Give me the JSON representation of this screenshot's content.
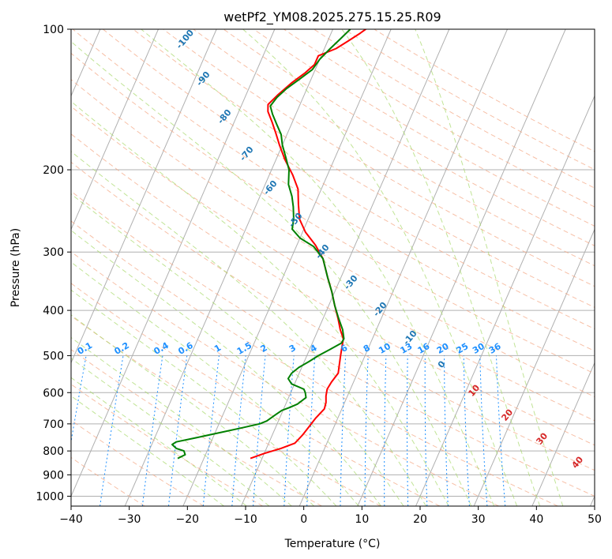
{
  "chart_data": {
    "type": "line",
    "title": "wetPf2_YM08.2025.275.15.25.R09",
    "xlabel": "Temperature (°C)",
    "ylabel": "Pressure (hPa)",
    "xlim": [
      -40,
      50
    ],
    "ylim": [
      1050,
      100
    ],
    "y_scale": "log",
    "grid": true,
    "x_ticks": [
      -40,
      -30,
      -20,
      -10,
      0,
      10,
      20,
      30,
      40,
      50
    ],
    "y_ticks": [
      100,
      200,
      300,
      400,
      500,
      600,
      700,
      800,
      900,
      1000
    ],
    "series": [
      {
        "color": "#ff0000",
        "points": [
          [
            -12,
            830
          ],
          [
            -10,
            810
          ],
          [
            -7.5,
            790
          ],
          [
            -5.5,
            770
          ],
          [
            -4.8,
            740
          ],
          [
            -4.3,
            710
          ],
          [
            -3.8,
            680
          ],
          [
            -3.0,
            650
          ],
          [
            -3.2,
            630
          ],
          [
            -3.7,
            610
          ],
          [
            -4.0,
            590
          ],
          [
            -3.8,
            570
          ],
          [
            -3.3,
            545
          ],
          [
            -3.8,
            520
          ],
          [
            -4.2,
            500
          ],
          [
            -4.6,
            480
          ],
          [
            -5.0,
            460
          ],
          [
            -6.2,
            440
          ],
          [
            -7.5,
            415
          ],
          [
            -9.0,
            390
          ],
          [
            -10.5,
            365
          ],
          [
            -12.3,
            340
          ],
          [
            -14.5,
            310
          ],
          [
            -16.8,
            290
          ],
          [
            -19.5,
            272
          ],
          [
            -21.5,
            255
          ],
          [
            -22.8,
            237
          ],
          [
            -24.0,
            220
          ],
          [
            -26.0,
            205
          ],
          [
            -28.5,
            190
          ],
          [
            -30.5,
            177
          ],
          [
            -32.0,
            167
          ],
          [
            -33.5,
            158
          ],
          [
            -35.0,
            150
          ],
          [
            -35.5,
            145
          ],
          [
            -34.5,
            138
          ],
          [
            -33.0,
            130
          ],
          [
            -31.5,
            124
          ],
          [
            -30.5,
            119
          ],
          [
            -30.5,
            114
          ],
          [
            -28.0,
            110
          ],
          [
            -26.5,
            106
          ],
          [
            -25.0,
            102
          ],
          [
            -24.0,
            99
          ]
        ]
      },
      {
        "color": "#008000",
        "points": [
          [
            -24.5,
            830
          ],
          [
            -23.5,
            815
          ],
          [
            -24.0,
            800
          ],
          [
            -25.5,
            790
          ],
          [
            -26.5,
            775
          ],
          [
            -26.0,
            765
          ],
          [
            -23.0,
            750
          ],
          [
            -19.0,
            730
          ],
          [
            -16.0,
            715
          ],
          [
            -13.0,
            700
          ],
          [
            -12.0,
            690
          ],
          [
            -11.0,
            670
          ],
          [
            -10.2,
            655
          ],
          [
            -9.0,
            645
          ],
          [
            -8.0,
            635
          ],
          [
            -7.0,
            615
          ],
          [
            -7.5,
            600
          ],
          [
            -8.0,
            590
          ],
          [
            -10.5,
            575
          ],
          [
            -11.5,
            560
          ],
          [
            -11.3,
            545
          ],
          [
            -10.5,
            530
          ],
          [
            -9.2,
            515
          ],
          [
            -8.0,
            500
          ],
          [
            -6.5,
            485
          ],
          [
            -5.0,
            470
          ],
          [
            -4.9,
            460
          ],
          [
            -5.8,
            440
          ],
          [
            -7.4,
            415
          ],
          [
            -9.0,
            390
          ],
          [
            -10.5,
            365
          ],
          [
            -12.3,
            340
          ],
          [
            -14.5,
            310
          ],
          [
            -17.0,
            292
          ],
          [
            -20.0,
            280
          ],
          [
            -22.0,
            268
          ],
          [
            -22.5,
            255
          ],
          [
            -23.5,
            240
          ],
          [
            -24.5,
            228
          ],
          [
            -26.0,
            215
          ],
          [
            -27.0,
            200
          ],
          [
            -28.5,
            188
          ],
          [
            -30.0,
            177
          ],
          [
            -31.0,
            168
          ],
          [
            -32.5,
            160
          ],
          [
            -34.0,
            152
          ],
          [
            -35.0,
            146
          ],
          [
            -34.5,
            140
          ],
          [
            -33.5,
            134
          ],
          [
            -32.0,
            128
          ],
          [
            -30.5,
            122
          ],
          [
            -30.0,
            116
          ],
          [
            -29.0,
            110
          ],
          [
            -28.0,
            105
          ],
          [
            -27.0,
            100
          ]
        ]
      }
    ],
    "annotations": {
      "dry_adiabat_labels": [
        "-100",
        "-90",
        "-80",
        "-70",
        "-60",
        "-50",
        "-40",
        "-30",
        "-20",
        "-10",
        "0"
      ],
      "moist_adiabat_labels": [
        "10",
        "20",
        "30",
        "40"
      ],
      "mixing_ratio_labels": [
        "0.1",
        "0.2",
        "0.4",
        "0.6",
        "1",
        "1.5",
        "2",
        "3",
        "4",
        "6",
        "8",
        "10",
        "13",
        "16",
        "20",
        "25",
        "30",
        "36"
      ],
      "mixing_ratio_values": [
        0.1,
        0.2,
        0.4,
        0.6,
        1,
        1.5,
        2,
        3,
        4,
        6,
        8,
        10,
        13,
        16,
        20,
        25,
        30,
        36
      ]
    }
  }
}
